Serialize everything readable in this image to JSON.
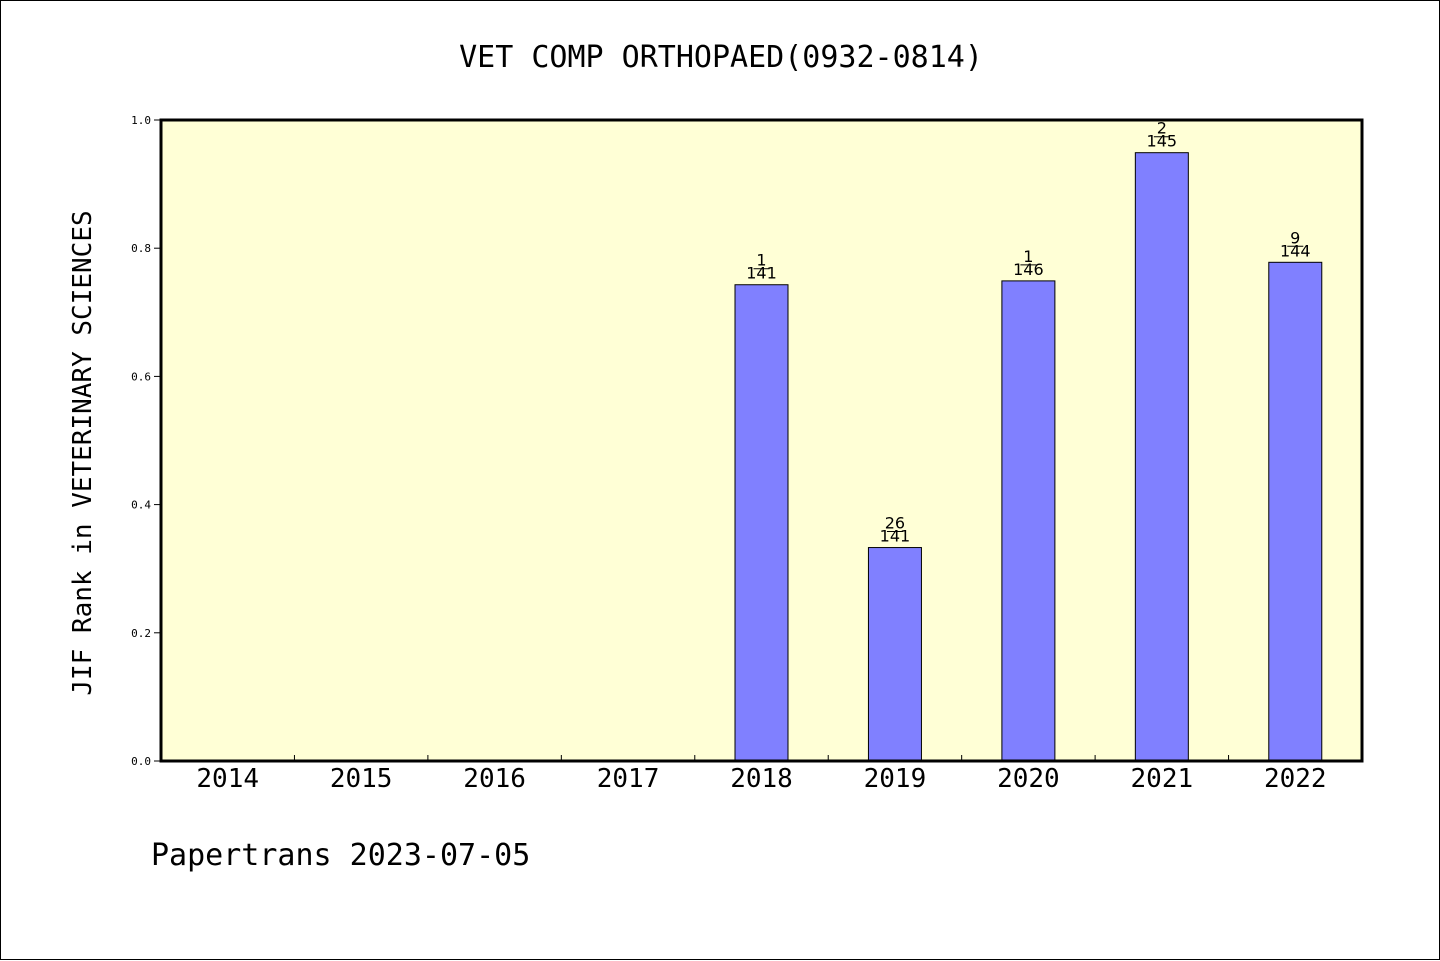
{
  "chart_data": {
    "type": "bar",
    "title": "VET COMP ORTHOPAED(0932-0814)",
    "ylabel": "JIF Rank in VETERINARY SCIENCES",
    "xlabel": "",
    "footer": "Papertrans 2023-07-05",
    "ylim": [
      0.0,
      1.0
    ],
    "yticks": [
      "0.0",
      "0.2",
      "0.4",
      "0.6",
      "0.8",
      "1.0"
    ],
    "categories": [
      "2014",
      "2015",
      "2016",
      "2017",
      "2018",
      "2019",
      "2020",
      "2021",
      "2022"
    ],
    "values": [
      null,
      null,
      null,
      null,
      0.743,
      0.333,
      0.749,
      0.949,
      0.778
    ],
    "rank_labels": [
      "",
      "",
      "",
      "",
      "1",
      "26",
      "1",
      "2",
      "9"
    ],
    "total_labels": [
      "",
      "",
      "",
      "",
      "141",
      "141",
      "146",
      "145",
      "144"
    ],
    "grid": false,
    "legend": "none",
    "colors": {
      "bar_fill": "#8080ff",
      "bar_stroke": "#000000",
      "plot_background": "#ffffd6",
      "axis": "#000000"
    }
  }
}
